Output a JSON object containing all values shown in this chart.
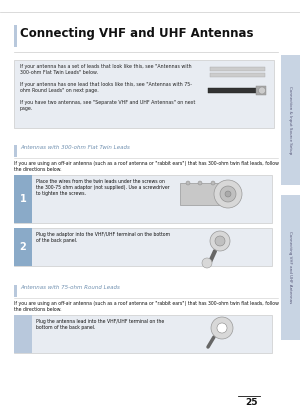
{
  "page_bg": "#ffffff",
  "title": "Connecting VHF and UHF Antennas",
  "title_bar_color": "#b8c8dc",
  "title_fontsize": 8.5,
  "info_box_bg": "#e8ecf2",
  "info_lines": [
    "If your antenna has a set of leads that look like this, see \"Antennas with\n300-ohm Flat Twin Leads\" below.",
    "If your antenna has one lead that looks like this, see \"Antennas with 75-\nohm Round Leads\" on next page.",
    "If you have two antennas, see \"Separate VHF and UHF Antennas\" on next\npage."
  ],
  "section1_title": "Antennas with 300-ohm Flat Twin Leads",
  "section1_bar_color": "#b8c8dc",
  "section1_text": "If you are using an off-air antenna (such as a roof antenna or \"rabbit ears\") that has 300-ohm twin flat leads, follow\nthe directions below.",
  "step1_num": "1",
  "step1_text": "Place the wires from the twin leads under the screws on\nthe 300-75 ohm adaptor (not supplied). Use a screwdriver\nto tighten the screws.",
  "step2_num": "2",
  "step2_text": "Plug the adaptor into the VHF/UHF terminal on the bottom\nof the back panel.",
  "section2_title": "Antennas with 75-ohm Round Leads",
  "section2_text": "If you are using an off-air antenna (such as a roof antenna or \"rabbit ears\") that has 300-ohm twin flat leads, follow\nthe directions below.",
  "step3_text": "Plug the antenna lead into the VHF/UHF terminal on the\nbottom of the back panel.",
  "sidebar_text1": "Connection & Input Source Setup",
  "sidebar_text2": "Connecting VHF and UHF Antennas",
  "sidebar_bg": "#c8d4e3",
  "page_num": "25",
  "step_num_bg": "#8aaac8",
  "step_num_color": "#ffffff",
  "section_title_color": "#7090b0",
  "body_text_color": "#111111",
  "info_text_color": "#222222",
  "line_color": "#cccccc"
}
